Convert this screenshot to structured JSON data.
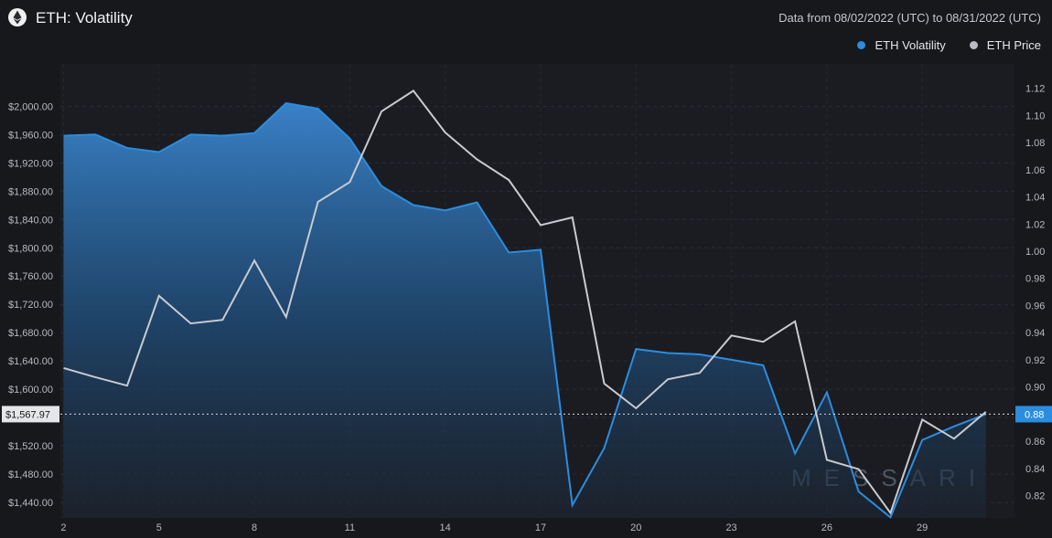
{
  "header": {
    "title": "ETH: Volatility",
    "date_range": "Data from 08/02/2022 (UTC) to 08/31/2022 (UTC)",
    "logo_icon": "ethereum-icon"
  },
  "legend": [
    {
      "label": "ETH Volatility",
      "color": "#2a8de0"
    },
    {
      "label": "ETH Price",
      "color": "#b9bcc4"
    }
  ],
  "crosshair": {
    "left_label": "$1,567.97",
    "right_label": "0.88"
  },
  "watermark": "MESSARI",
  "chart_data": {
    "type": "area",
    "x": [
      2,
      3,
      4,
      5,
      6,
      7,
      8,
      9,
      10,
      11,
      12,
      13,
      14,
      15,
      16,
      17,
      18,
      19,
      20,
      21,
      22,
      23,
      24,
      25,
      26,
      27,
      28,
      29,
      30,
      31
    ],
    "x_ticks": [
      2,
      5,
      8,
      11,
      14,
      17,
      20,
      23,
      26,
      29
    ],
    "x_tick_labels": [
      "2",
      "5",
      "8",
      "11",
      "14",
      "17",
      "20",
      "23",
      "26",
      "29"
    ],
    "y_left": {
      "ticks": [
        1440,
        1480,
        1520,
        1560,
        1600,
        1640,
        1680,
        1720,
        1760,
        1800,
        1840,
        1880,
        1920,
        1960,
        2000
      ],
      "tick_labels": [
        "$1,440.00",
        "$1,480.00",
        "$1,520.00",
        "",
        "$1,600.00",
        "$1,640.00",
        "$1,680.00",
        "$1,720.00",
        "$1,760.00",
        "$1,800.00",
        "$1,840.00",
        "$1,880.00",
        "$1,920.00",
        "$1,960.00",
        "$2,000.00"
      ],
      "lim": [
        1418,
        2060
      ]
    },
    "y_right": {
      "ticks": [
        0.82,
        0.84,
        0.86,
        0.88,
        0.9,
        0.92,
        0.94,
        0.96,
        0.98,
        1.0,
        1.02,
        1.04,
        1.06,
        1.08,
        1.1,
        1.12
      ],
      "tick_labels": [
        "0.82",
        "0.84",
        "0.86",
        "",
        "0.90",
        "0.92",
        "0.94",
        "0.96",
        "0.98",
        "1.00",
        "1.02",
        "1.04",
        "1.06",
        "1.08",
        "1.10",
        "1.12"
      ],
      "lim": [
        0.8036,
        1.1379
      ]
    },
    "series": [
      {
        "name": "ETH Volatility",
        "axis": "right",
        "color": "#2a8de0",
        "values": [
          1.085,
          1.086,
          1.076,
          1.073,
          1.086,
          1.085,
          1.087,
          1.109,
          1.105,
          1.083,
          1.048,
          1.034,
          1.03,
          1.036,
          0.999,
          1.001,
          0.813,
          0.855,
          0.928,
          0.925,
          0.924,
          0.92,
          0.916,
          0.851,
          0.896,
          0.823,
          0.804,
          0.861,
          0.871,
          0.88
        ]
      },
      {
        "name": "ETH Price",
        "axis": "left",
        "color": "#b9bcc4",
        "values": [
          1630,
          1617,
          1605,
          1732,
          1693,
          1698,
          1782,
          1702,
          1865,
          1893,
          1993,
          2022,
          1963,
          1925,
          1896,
          1832,
          1843,
          1608,
          1573,
          1614,
          1623,
          1676,
          1667,
          1696,
          1500,
          1487,
          1425,
          1557,
          1530,
          1568
        ]
      }
    ]
  }
}
